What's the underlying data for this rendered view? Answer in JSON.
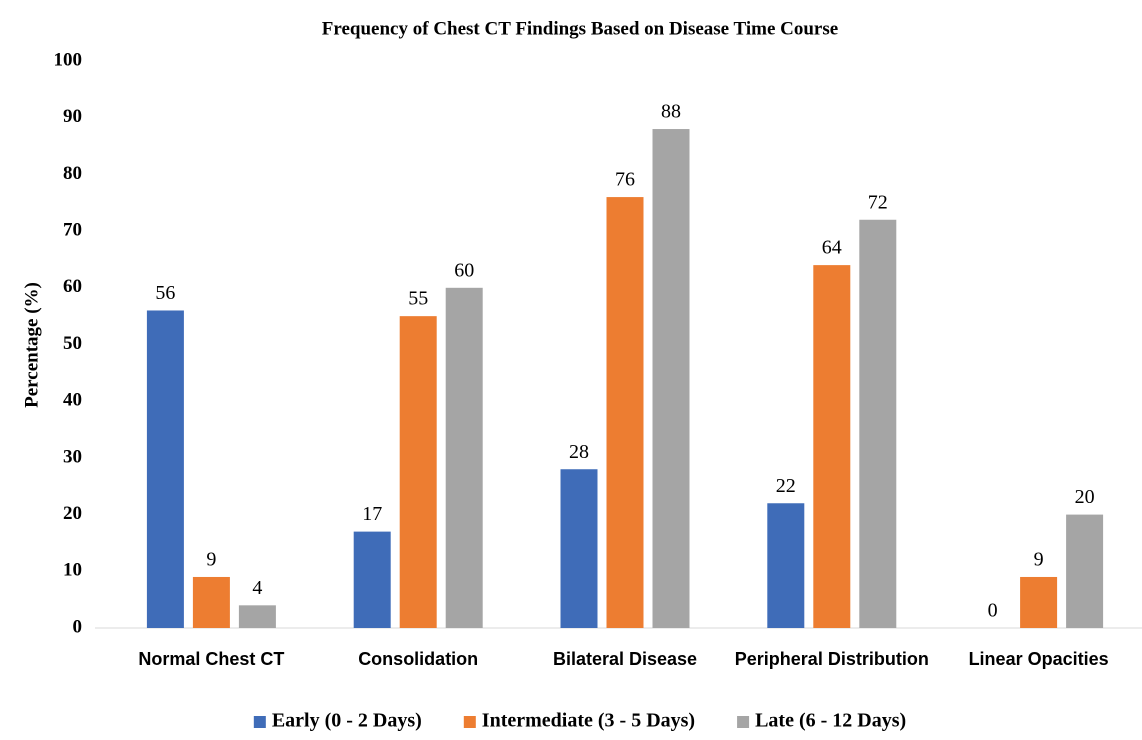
{
  "chart_data": {
    "type": "bar",
    "title": "Frequency of Chest CT Findings Based on Disease Time Course",
    "y_label": "Percentage (%)",
    "categories": [
      "Normal Chest CT",
      "Consolidation",
      "Bilateral Disease",
      "Peripheral Distribution",
      "Linear Opacities"
    ],
    "series": [
      {
        "name": "Early (0 - 2 Days)",
        "color": "#3f6cb8",
        "values": [
          56,
          17,
          28,
          22,
          0
        ]
      },
      {
        "name": "Intermediate (3 - 5 Days)",
        "color": "#ed7d31",
        "values": [
          9,
          55,
          76,
          64,
          9
        ]
      },
      {
        "name": "Late (6 - 12 Days)",
        "color": "#a5a5a5",
        "values": [
          4,
          60,
          88,
          72,
          20
        ]
      }
    ],
    "ylim": [
      0,
      100
    ],
    "yticks": [
      0,
      10,
      20,
      30,
      40,
      50,
      60,
      70,
      80,
      90,
      100
    ],
    "grid": false,
    "legend": "bottom"
  }
}
